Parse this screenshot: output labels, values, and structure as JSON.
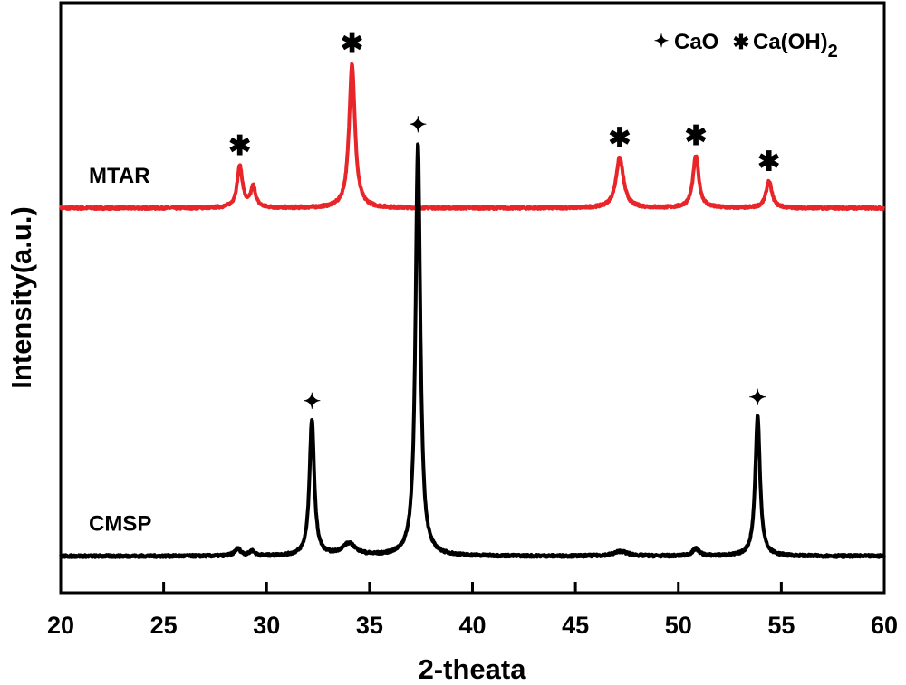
{
  "chart_data": {
    "type": "line",
    "title": "",
    "xlabel": "2-theata",
    "ylabel": "Intensity(a.u.)",
    "xlim": [
      20,
      60
    ],
    "x_ticks": [
      "20",
      "25",
      "30",
      "35",
      "40",
      "45",
      "50",
      "55",
      "60"
    ],
    "y_ticks": [],
    "y_units": "arbitrary (a.u.)",
    "grid": false,
    "legend": {
      "position": "top-right",
      "entries": [
        {
          "symbol": "✦",
          "label": "CaO"
        },
        {
          "symbol": "✱",
          "label": "Ca(OH)",
          "subscript": "2"
        }
      ]
    },
    "series": [
      {
        "name": "MTAR",
        "color": "#e8262a",
        "baseline": 0.652,
        "peaks": [
          {
            "x": 28.7,
            "height": 0.07,
            "width": 0.16,
            "marker": "✱"
          },
          {
            "x": 29.35,
            "height": 0.035,
            "width": 0.14,
            "marker": ""
          },
          {
            "x": 34.15,
            "height": 0.245,
            "width": 0.17,
            "marker": "✱"
          },
          {
            "x": 47.15,
            "height": 0.085,
            "width": 0.22,
            "marker": "✱"
          },
          {
            "x": 50.85,
            "height": 0.088,
            "width": 0.17,
            "marker": "✱"
          },
          {
            "x": 54.4,
            "height": 0.045,
            "width": 0.17,
            "marker": "✱"
          }
        ]
      },
      {
        "name": "CMSP",
        "color": "#000000",
        "baseline": 0.062,
        "peaks": [
          {
            "x": 28.6,
            "height": 0.012,
            "width": 0.18,
            "marker": ""
          },
          {
            "x": 29.3,
            "height": 0.008,
            "width": 0.15,
            "marker": ""
          },
          {
            "x": 32.2,
            "height": 0.23,
            "width": 0.14,
            "marker": "✦"
          },
          {
            "x": 34.0,
            "height": 0.02,
            "width": 0.4,
            "marker": ""
          },
          {
            "x": 37.35,
            "height": 0.7,
            "width": 0.14,
            "marker": "✦"
          },
          {
            "x": 47.2,
            "height": 0.008,
            "width": 0.4,
            "marker": ""
          },
          {
            "x": 50.85,
            "height": 0.012,
            "width": 0.2,
            "marker": ""
          },
          {
            "x": 53.85,
            "height": 0.238,
            "width": 0.14,
            "marker": "✦"
          }
        ]
      }
    ],
    "annotations": [
      "✦",
      "✱"
    ]
  }
}
